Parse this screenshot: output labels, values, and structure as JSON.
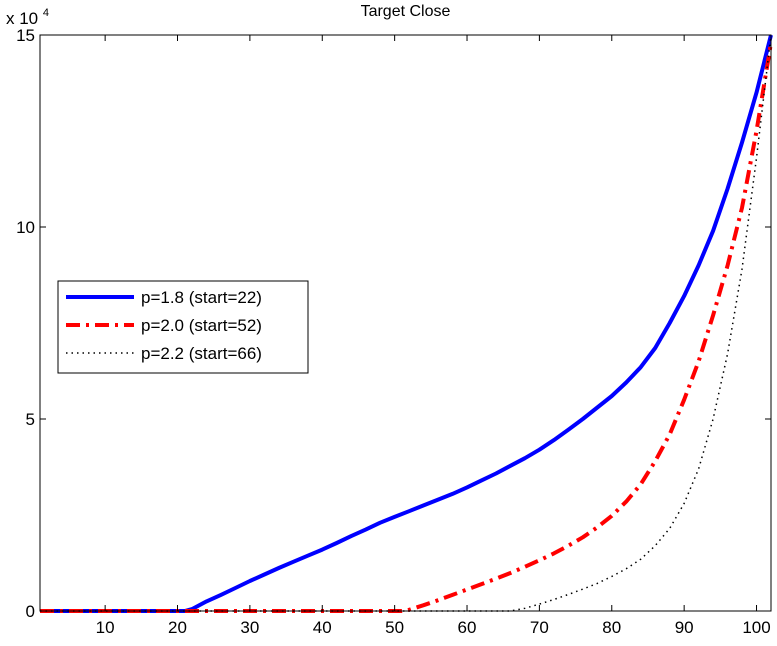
{
  "chart_data": {
    "type": "line",
    "title": "Target Close",
    "xlabel": "",
    "ylabel": "",
    "y_multiplier_label": "x 10",
    "y_multiplier_exponent": "4",
    "xlim": [
      1,
      102
    ],
    "ylim": [
      0,
      15
    ],
    "x_ticks": [
      10,
      20,
      30,
      40,
      50,
      60,
      70,
      80,
      90,
      100
    ],
    "y_ticks": [
      0,
      5,
      10,
      15
    ],
    "grid": false,
    "legend_position": "center-left",
    "series": [
      {
        "name": "p=1.8 (start=22)",
        "color": "#0000ff",
        "style": "solid",
        "x": [
          1,
          21,
          22,
          24,
          26,
          28,
          30,
          32,
          34,
          36,
          38,
          40,
          42,
          44,
          46,
          48,
          50,
          52,
          54,
          56,
          58,
          60,
          62,
          64,
          66,
          68,
          70,
          72,
          74,
          76,
          78,
          80,
          82,
          84,
          86,
          88,
          90,
          92,
          94,
          96,
          98,
          100,
          102
        ],
        "y": [
          0,
          0,
          0.05,
          0.25,
          0.42,
          0.6,
          0.78,
          0.95,
          1.12,
          1.28,
          1.44,
          1.6,
          1.77,
          1.95,
          2.12,
          2.3,
          2.45,
          2.6,
          2.75,
          2.9,
          3.05,
          3.22,
          3.4,
          3.58,
          3.78,
          3.98,
          4.2,
          4.45,
          4.72,
          5.0,
          5.3,
          5.6,
          5.95,
          6.35,
          6.85,
          7.5,
          8.2,
          9.0,
          9.9,
          11.0,
          12.2,
          13.5,
          15.0
        ]
      },
      {
        "name": "p=2.0 (start=52)",
        "color": "#ff0000",
        "style": "dashdot",
        "x": [
          1,
          51,
          52,
          54,
          56,
          58,
          60,
          62,
          64,
          66,
          68,
          70,
          72,
          74,
          76,
          78,
          80,
          82,
          84,
          86,
          88,
          90,
          92,
          94,
          96,
          98,
          100,
          102
        ],
        "y": [
          0,
          0,
          0.03,
          0.15,
          0.28,
          0.42,
          0.56,
          0.7,
          0.84,
          0.99,
          1.15,
          1.32,
          1.5,
          1.7,
          1.92,
          2.18,
          2.48,
          2.85,
          3.3,
          3.9,
          4.6,
          5.5,
          6.5,
          7.7,
          9.0,
          10.5,
          12.5,
          14.8
        ]
      },
      {
        "name": "p=2.2 (start=66)",
        "color": "#000000",
        "style": "dotted",
        "x": [
          1,
          66,
          68,
          70,
          72,
          74,
          76,
          78,
          80,
          82,
          84,
          86,
          88,
          90,
          92,
          94,
          96,
          98,
          100,
          102
        ],
        "y": [
          0,
          0,
          0.07,
          0.18,
          0.3,
          0.43,
          0.57,
          0.72,
          0.9,
          1.1,
          1.35,
          1.7,
          2.15,
          2.8,
          3.7,
          5.0,
          6.7,
          8.9,
          11.8,
          15.0
        ]
      }
    ]
  }
}
